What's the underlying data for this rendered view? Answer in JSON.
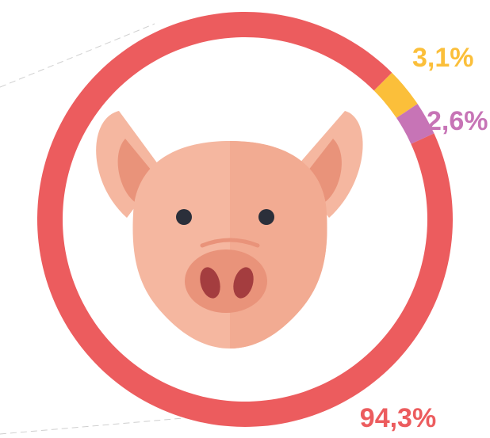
{
  "chart_data": {
    "type": "donut",
    "values": [
      3.1,
      2.6,
      94.3
    ],
    "value_labels": [
      "3,1%",
      "2,6%",
      "94,3%"
    ],
    "colors": [
      "#fbbf3a",
      "#c774b6",
      "#ec5c5e"
    ]
  }
}
